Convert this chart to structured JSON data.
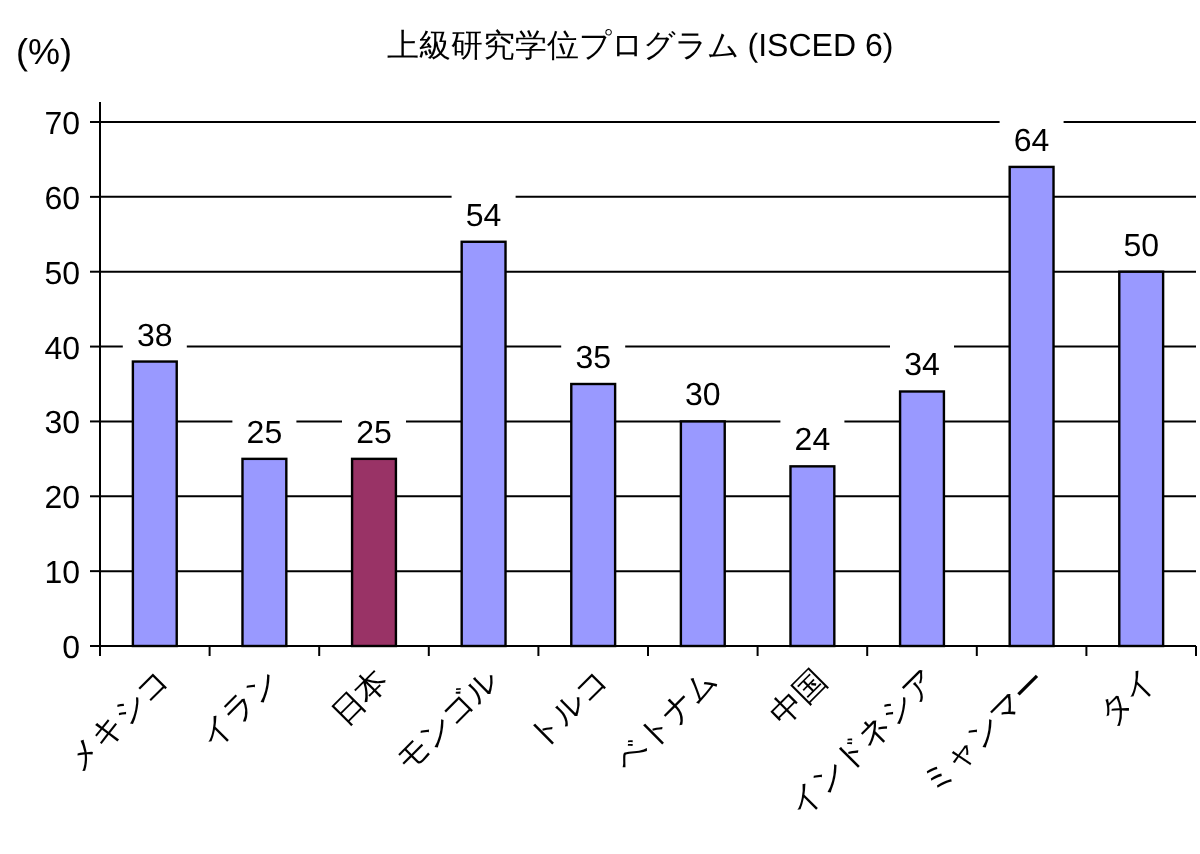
{
  "chart_data": {
    "type": "bar",
    "title": "上級研究学位プログラム (ISCED 6)",
    "ylabel": "(%)",
    "categories": [
      "メキシコ",
      "イラン",
      "日本",
      "モンゴル",
      "トルコ",
      "ベトナム",
      "中国",
      "インドネシア",
      "ミャンマー",
      "タイ"
    ],
    "values": [
      38,
      25,
      25,
      54,
      35,
      30,
      24,
      34,
      64,
      50
    ],
    "colors": [
      "#9999ff",
      "#9999ff",
      "#993366",
      "#9999ff",
      "#9999ff",
      "#9999ff",
      "#9999ff",
      "#9999ff",
      "#9999ff",
      "#9999ff"
    ],
    "ylim": [
      0,
      70
    ],
    "yticks": [
      0,
      10,
      20,
      30,
      40,
      50,
      60,
      70
    ],
    "grid": "y",
    "data_labels": true
  }
}
